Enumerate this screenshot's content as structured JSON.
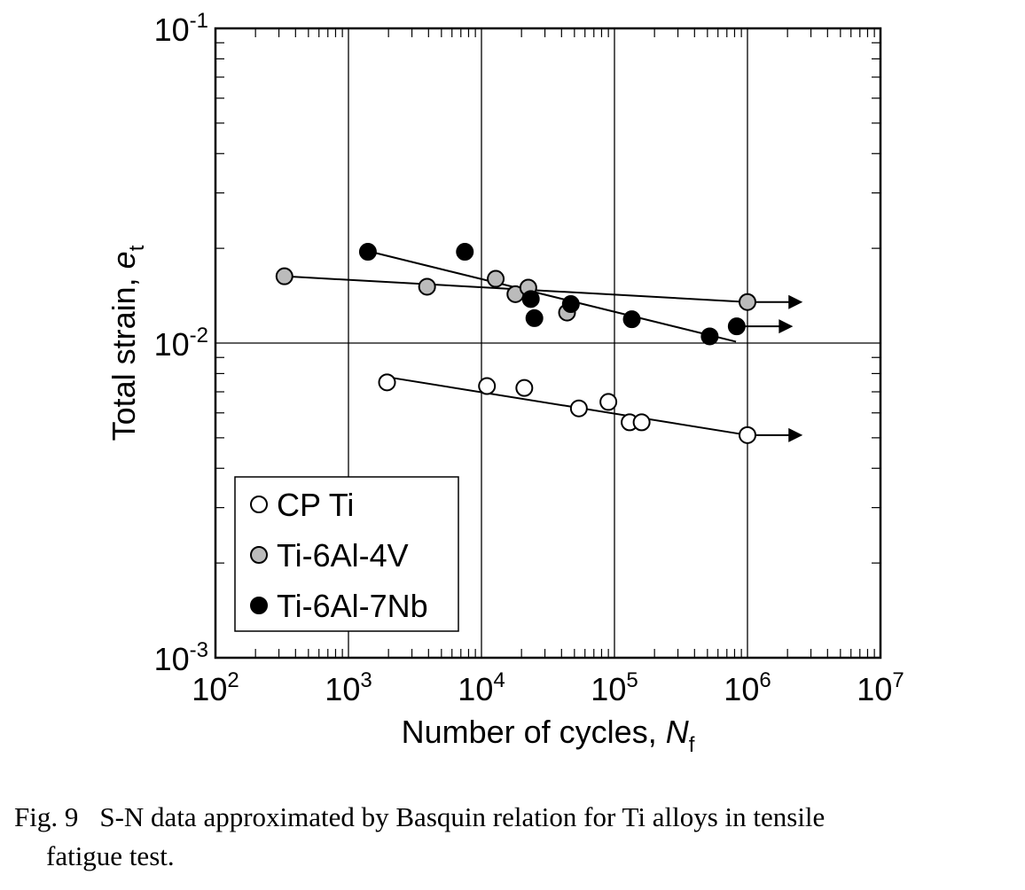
{
  "chart_data": {
    "type": "scatter",
    "x_scale": "log",
    "y_scale": "log",
    "xlim": [
      100,
      10000000
    ],
    "ylim": [
      0.001,
      0.1
    ],
    "grid": true,
    "legend_position": "bottom-left",
    "xlabel": "Number of cycles, ",
    "xlabel_var": "N",
    "xlabel_sub": "f",
    "ylabel": "Total strain, ",
    "ylabel_var": "e",
    "ylabel_sub": "t",
    "x_ticks": [
      {
        "value": 100,
        "base": "10",
        "exp": "2"
      },
      {
        "value": 1000,
        "base": "10",
        "exp": "3"
      },
      {
        "value": 10000,
        "base": "10",
        "exp": "4"
      },
      {
        "value": 100000,
        "base": "10",
        "exp": "5"
      },
      {
        "value": 1000000,
        "base": "10",
        "exp": "6"
      },
      {
        "value": 10000000,
        "base": "10",
        "exp": "7"
      }
    ],
    "y_ticks": [
      {
        "value": 0.001,
        "base": "10",
        "exp": "-3"
      },
      {
        "value": 0.01,
        "base": "10",
        "exp": "-2"
      },
      {
        "value": 0.1,
        "base": "10",
        "exp": "-1"
      }
    ],
    "series": [
      {
        "name": "CP Ti",
        "fill": "#ffffff",
        "points": [
          {
            "x": 1950,
            "y": 0.0075
          },
          {
            "x": 11000,
            "y": 0.0073
          },
          {
            "x": 21000,
            "y": 0.0072
          },
          {
            "x": 54000,
            "y": 0.0062
          },
          {
            "x": 90000,
            "y": 0.0065
          },
          {
            "x": 130000,
            "y": 0.0056
          },
          {
            "x": 160000,
            "y": 0.0056
          },
          {
            "x": 1000000,
            "y": 0.0051
          }
        ],
        "fit": [
          {
            "x": 1950,
            "y": 0.0078
          },
          {
            "x": 1000000,
            "y": 0.0051
          }
        ],
        "runouts": [
          {
            "x": 1000000,
            "y": 0.0051,
            "x_end": 2600000
          }
        ]
      },
      {
        "name": "Ti-6Al-4V",
        "fill": "#bbbbbb",
        "points": [
          {
            "x": 330,
            "y": 0.0163
          },
          {
            "x": 3900,
            "y": 0.0151
          },
          {
            "x": 12800,
            "y": 0.016
          },
          {
            "x": 18000,
            "y": 0.0143
          },
          {
            "x": 22500,
            "y": 0.015
          },
          {
            "x": 44000,
            "y": 0.0125
          },
          {
            "x": 1000000,
            "y": 0.0135
          }
        ],
        "fit": [
          {
            "x": 330,
            "y": 0.0163
          },
          {
            "x": 1000000,
            "y": 0.0135
          }
        ],
        "runouts": [
          {
            "x": 1000000,
            "y": 0.0135,
            "x_end": 2600000
          }
        ]
      },
      {
        "name": "Ti-6Al-7Nb",
        "fill": "#000000",
        "points": [
          {
            "x": 1400,
            "y": 0.0195
          },
          {
            "x": 7500,
            "y": 0.0195
          },
          {
            "x": 23500,
            "y": 0.0138
          },
          {
            "x": 25000,
            "y": 0.012
          },
          {
            "x": 47000,
            "y": 0.0133
          },
          {
            "x": 135000,
            "y": 0.0119
          },
          {
            "x": 520000,
            "y": 0.0105
          },
          {
            "x": 830000,
            "y": 0.0113
          }
        ],
        "fit": [
          {
            "x": 1400,
            "y": 0.0196
          },
          {
            "x": 820000,
            "y": 0.0101
          }
        ],
        "runouts": [
          {
            "x": 830000,
            "y": 0.0113,
            "x_end": 2200000
          }
        ]
      }
    ]
  },
  "caption": {
    "fig_label": "Fig.  9",
    "line1": "S-N data approximated by Basquin relation for Ti alloys in tensile",
    "line2": "fatigue test."
  }
}
